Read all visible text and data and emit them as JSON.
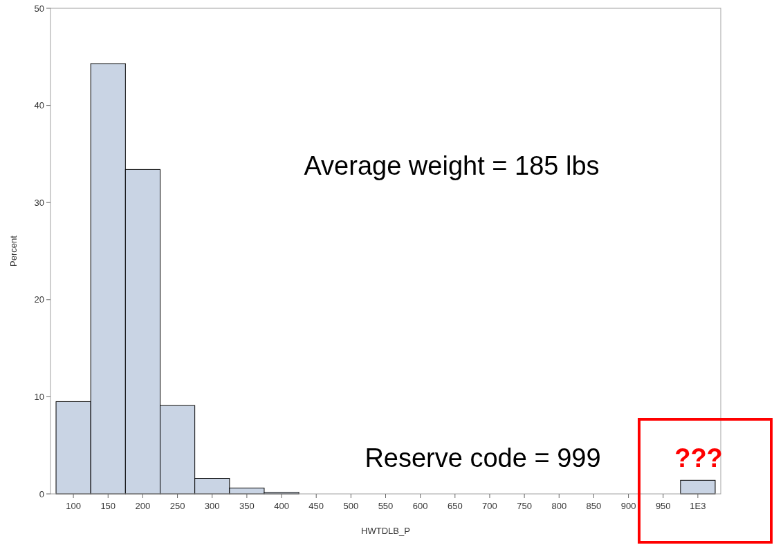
{
  "chart_data": {
    "type": "histogram",
    "xlabel": "HWTDLB_P",
    "ylabel": "Percent",
    "bins": [
      75,
      125,
      175,
      225,
      275,
      325,
      375,
      425,
      475,
      525,
      575,
      625,
      675,
      725,
      775,
      825,
      875,
      925,
      975,
      1025
    ],
    "values": [
      9.5,
      44.3,
      33.4,
      9.1,
      1.6,
      0.6,
      0.15,
      0,
      0,
      0,
      0,
      0,
      0,
      0,
      0,
      0,
      0,
      0,
      1.4
    ],
    "color": "#c9d4e4",
    "xlim": [
      67,
      1033
    ],
    "xticks": [
      100,
      150,
      200,
      250,
      300,
      350,
      400,
      450,
      500,
      550,
      600,
      650,
      700,
      750,
      800,
      850,
      900,
      950,
      {
        "value": 1000,
        "label": "1E3"
      }
    ],
    "ylim": [
      0,
      50
    ],
    "yticks": [
      0,
      10,
      20,
      30,
      40,
      50
    ],
    "annotations": [
      "Average weight = 185 lbs",
      "Reserve code = 999",
      "???"
    ]
  }
}
